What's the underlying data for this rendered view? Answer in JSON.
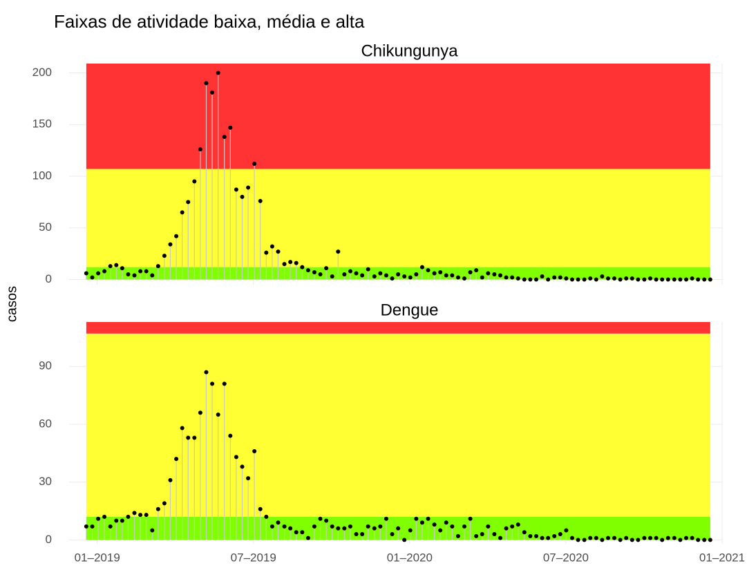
{
  "title": "Faixas de atividade baixa, média e alta",
  "y_label": "casos",
  "chart_data": [
    {
      "type": "lollipop",
      "title": "Chikungunya",
      "stem_color": "#c8c8c8",
      "point_color": "#000000",
      "grid": true,
      "xlim": [
        2018.91,
        2021.0
      ],
      "ylim": [
        -5,
        209
      ],
      "yticks": [
        0,
        50,
        100,
        150,
        200
      ],
      "bands": [
        {
          "from": 0,
          "to": 12,
          "color": "#7fff00"
        },
        {
          "from": 12,
          "to": 107,
          "color": "#ffff33"
        },
        {
          "from": 107,
          "to": 209,
          "color": "#ff3333"
        }
      ],
      "x": [
        2018.965,
        2018.984,
        2019.003,
        2019.023,
        2019.042,
        2019.061,
        2019.08,
        2019.099,
        2019.119,
        2019.138,
        2019.157,
        2019.176,
        2019.195,
        2019.215,
        2019.234,
        2019.253,
        2019.272,
        2019.291,
        2019.311,
        2019.33,
        2019.349,
        2019.368,
        2019.387,
        2019.407,
        2019.426,
        2019.445,
        2019.464,
        2019.483,
        2019.503,
        2019.522,
        2019.541,
        2019.56,
        2019.579,
        2019.599,
        2019.618,
        2019.637,
        2019.656,
        2019.675,
        2019.695,
        2019.714,
        2019.733,
        2019.752,
        2019.771,
        2019.791,
        2019.81,
        2019.829,
        2019.848,
        2019.867,
        2019.887,
        2019.906,
        2019.925,
        2019.944,
        2019.963,
        2019.983,
        2020.002,
        2020.021,
        2020.04,
        2020.059,
        2020.079,
        2020.098,
        2020.117,
        2020.136,
        2020.155,
        2020.175,
        2020.194,
        2020.213,
        2020.232,
        2020.251,
        2020.271,
        2020.29,
        2020.309,
        2020.328,
        2020.347,
        2020.367,
        2020.386,
        2020.405,
        2020.424,
        2020.443,
        2020.463,
        2020.482,
        2020.501,
        2020.52,
        2020.539,
        2020.559,
        2020.578,
        2020.597,
        2020.616,
        2020.635,
        2020.655,
        2020.674,
        2020.693,
        2020.712,
        2020.731,
        2020.751,
        2020.77,
        2020.789,
        2020.808,
        2020.827,
        2020.847,
        2020.866,
        2020.885,
        2020.904,
        2020.923,
        2020.943,
        2020.962
      ],
      "values": [
        6,
        2,
        6,
        8,
        13,
        14,
        11,
        5,
        4,
        8,
        8,
        4,
        13,
        23,
        34,
        42,
        65,
        75,
        95,
        126,
        190,
        181,
        200,
        138,
        147,
        87,
        80,
        89,
        112,
        76,
        26,
        32,
        27,
        15,
        17,
        16,
        12,
        9,
        7,
        5,
        11,
        3,
        27,
        5,
        8,
        6,
        4,
        10,
        3,
        6,
        4,
        1,
        5,
        3,
        2,
        5,
        12,
        9,
        6,
        7,
        4,
        4,
        2,
        1,
        7,
        9,
        2,
        6,
        5,
        4,
        2,
        2,
        1,
        0,
        0,
        0,
        3,
        0,
        2,
        2,
        1,
        0,
        0,
        0,
        1,
        0,
        3,
        1,
        1,
        0,
        1,
        1,
        0,
        0,
        1,
        0,
        0,
        0,
        0,
        0,
        0,
        1,
        0,
        0,
        0
      ]
    },
    {
      "type": "lollipop",
      "title": "Dengue",
      "stem_color": "#c8c8c8",
      "point_color": "#000000",
      "grid": true,
      "xlim": [
        2018.91,
        2021.0
      ],
      "ylim": [
        -2,
        113
      ],
      "yticks": [
        0,
        30,
        60,
        90
      ],
      "xticks": [
        {
          "value": 2019,
          "label": "01–2019"
        },
        {
          "value": 2019.5,
          "label": "07–2019"
        },
        {
          "value": 2020,
          "label": "01–2020"
        },
        {
          "value": 2020.5,
          "label": "07–2020"
        },
        {
          "value": 2021,
          "label": "01–2021"
        }
      ],
      "bands": [
        {
          "from": 0,
          "to": 12,
          "color": "#7fff00"
        },
        {
          "from": 12,
          "to": 107,
          "color": "#ffff33"
        },
        {
          "from": 107,
          "to": 113,
          "color": "#ff3333"
        }
      ],
      "x": [
        2018.965,
        2018.984,
        2019.003,
        2019.023,
        2019.042,
        2019.061,
        2019.08,
        2019.099,
        2019.119,
        2019.138,
        2019.157,
        2019.176,
        2019.195,
        2019.215,
        2019.234,
        2019.253,
        2019.272,
        2019.291,
        2019.311,
        2019.33,
        2019.349,
        2019.368,
        2019.387,
        2019.407,
        2019.426,
        2019.445,
        2019.464,
        2019.483,
        2019.503,
        2019.522,
        2019.541,
        2019.56,
        2019.579,
        2019.599,
        2019.618,
        2019.637,
        2019.656,
        2019.675,
        2019.695,
        2019.714,
        2019.733,
        2019.752,
        2019.771,
        2019.791,
        2019.81,
        2019.829,
        2019.848,
        2019.867,
        2019.887,
        2019.906,
        2019.925,
        2019.944,
        2019.963,
        2019.983,
        2020.002,
        2020.021,
        2020.04,
        2020.059,
        2020.079,
        2020.098,
        2020.117,
        2020.136,
        2020.155,
        2020.175,
        2020.194,
        2020.213,
        2020.232,
        2020.251,
        2020.271,
        2020.29,
        2020.309,
        2020.328,
        2020.347,
        2020.367,
        2020.386,
        2020.405,
        2020.424,
        2020.443,
        2020.463,
        2020.482,
        2020.501,
        2020.52,
        2020.539,
        2020.559,
        2020.578,
        2020.597,
        2020.616,
        2020.635,
        2020.655,
        2020.674,
        2020.693,
        2020.712,
        2020.731,
        2020.751,
        2020.77,
        2020.789,
        2020.808,
        2020.827,
        2020.847,
        2020.866,
        2020.885,
        2020.904,
        2020.923,
        2020.943,
        2020.962
      ],
      "values": [
        7,
        7,
        11,
        12,
        7,
        10,
        10,
        12,
        14,
        13,
        13,
        5,
        16,
        19,
        31,
        42,
        58,
        53,
        53,
        66,
        87,
        81,
        65,
        81,
        54,
        43,
        38,
        32,
        46,
        16,
        12,
        7,
        9,
        7,
        6,
        4,
        4,
        1,
        7,
        11,
        10,
        7,
        6,
        6,
        7,
        3,
        3,
        7,
        6,
        7,
        11,
        3,
        6,
        0,
        5,
        11,
        9,
        11,
        8,
        5,
        9,
        7,
        2,
        7,
        11,
        2,
        3,
        7,
        3,
        1,
        6,
        7,
        8,
        4,
        2,
        2,
        1,
        1,
        2,
        3,
        5,
        1,
        0,
        0,
        1,
        1,
        0,
        1,
        1,
        0,
        1,
        0,
        0,
        1,
        1,
        1,
        0,
        1,
        1,
        0,
        1,
        1,
        0,
        0,
        0
      ]
    }
  ]
}
